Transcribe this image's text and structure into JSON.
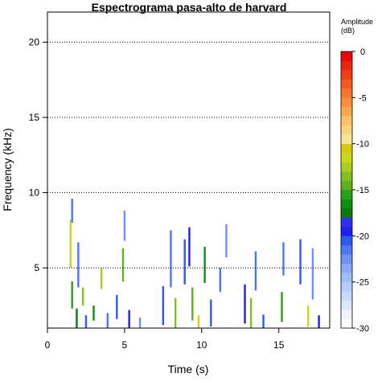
{
  "chart_data": {
    "type": "heatmap",
    "title": "Espectrograma pasa-alto de harvard",
    "xlabel": "Time (s)",
    "ylabel": "Frequency (kHz)",
    "xlim": [
      0,
      18.3
    ],
    "ylim": [
      1,
      22
    ],
    "x_ticks": [
      0,
      5,
      10,
      15
    ],
    "y_ticks": [
      5,
      10,
      15,
      20
    ],
    "grid": "horizontal dotted lines at y ticks",
    "colorbar": {
      "title_line1": "Amplitude",
      "title_line2": "(dB)",
      "range": [
        -30,
        0
      ],
      "ticks": [
        0,
        -5,
        -10,
        -15,
        -20,
        -25,
        -30
      ],
      "colors": [
        "#fefefe",
        "#eef3fd",
        "#dde7fc",
        "#c9d9fb",
        "#b6cbf9",
        "#a1bdf8",
        "#8aa9f6",
        "#6e93f4",
        "#4d78f1",
        "#2a5cee",
        "#1f1ff0",
        "#2f2ff0",
        "#0a7a0a",
        "#0f8f0f",
        "#2aa11a",
        "#5fb020",
        "#86c01f",
        "#aacd1f",
        "#c7d719",
        "#d8c80f",
        "#f8e39a",
        "#fbd37a",
        "#fcc266",
        "#fba84f",
        "#f98f3c",
        "#f7762d",
        "#f45a20",
        "#f03e15",
        "#ec2410",
        "#e80a0a"
      ]
    },
    "energy_blobs": [
      {
        "t": 1.5,
        "f": 6.6,
        "h": 3.2,
        "db": -12
      },
      {
        "t": 1.6,
        "f": 8.8,
        "h": 1.6,
        "db": -22
      },
      {
        "t": 1.6,
        "f": 3.2,
        "h": 1.8,
        "db": -16
      },
      {
        "t": 1.9,
        "f": 1.6,
        "h": 1.4,
        "db": -18
      },
      {
        "t": 2.0,
        "f": 5.2,
        "h": 3.0,
        "db": -22
      },
      {
        "t": 2.3,
        "f": 3.1,
        "h": 1.2,
        "db": -14
      },
      {
        "t": 2.5,
        "f": 1.4,
        "h": 0.9,
        "db": -21
      },
      {
        "t": 3.0,
        "f": 2.0,
        "h": 1.0,
        "db": -17
      },
      {
        "t": 3.5,
        "f": 4.3,
        "h": 1.4,
        "db": -13
      },
      {
        "t": 3.9,
        "f": 1.5,
        "h": 1.0,
        "db": -22
      },
      {
        "t": 4.5,
        "f": 2.4,
        "h": 1.6,
        "db": -21
      },
      {
        "t": 4.9,
        "f": 5.2,
        "h": 2.2,
        "db": -15
      },
      {
        "t": 5.0,
        "f": 7.8,
        "h": 2.0,
        "db": -23
      },
      {
        "t": 5.3,
        "f": 1.6,
        "h": 1.2,
        "db": -20
      },
      {
        "t": 6.0,
        "f": 1.3,
        "h": 0.8,
        "db": -23
      },
      {
        "t": 7.5,
        "f": 2.5,
        "h": 2.6,
        "db": -21
      },
      {
        "t": 8.0,
        "f": 5.6,
        "h": 3.8,
        "db": -22
      },
      {
        "t": 8.3,
        "f": 2.0,
        "h": 2.0,
        "db": -14
      },
      {
        "t": 8.9,
        "f": 5.4,
        "h": 3.0,
        "db": -21
      },
      {
        "t": 9.2,
        "f": 6.4,
        "h": 2.6,
        "db": -20
      },
      {
        "t": 9.4,
        "f": 2.6,
        "h": 2.2,
        "db": -15
      },
      {
        "t": 9.8,
        "f": 1.4,
        "h": 0.9,
        "db": -12
      },
      {
        "t": 10.2,
        "f": 5.2,
        "h": 2.4,
        "db": -17
      },
      {
        "t": 10.6,
        "f": 2.0,
        "h": 1.8,
        "db": -21
      },
      {
        "t": 11.2,
        "f": 4.2,
        "h": 1.6,
        "db": -22
      },
      {
        "t": 11.6,
        "f": 6.8,
        "h": 2.2,
        "db": -23
      },
      {
        "t": 12.8,
        "f": 2.6,
        "h": 2.6,
        "db": -20
      },
      {
        "t": 13.2,
        "f": 2.0,
        "h": 2.0,
        "db": -14
      },
      {
        "t": 13.5,
        "f": 4.8,
        "h": 2.6,
        "db": -22
      },
      {
        "t": 14.0,
        "f": 1.4,
        "h": 1.0,
        "db": -21
      },
      {
        "t": 15.2,
        "f": 2.4,
        "h": 2.0,
        "db": -16
      },
      {
        "t": 15.3,
        "f": 5.6,
        "h": 2.2,
        "db": -22
      },
      {
        "t": 16.4,
        "f": 5.4,
        "h": 3.0,
        "db": -21
      },
      {
        "t": 16.9,
        "f": 1.8,
        "h": 1.4,
        "db": -12
      },
      {
        "t": 17.2,
        "f": 4.6,
        "h": 3.4,
        "db": -23
      },
      {
        "t": 17.6,
        "f": 1.4,
        "h": 0.9,
        "db": -20
      }
    ]
  }
}
